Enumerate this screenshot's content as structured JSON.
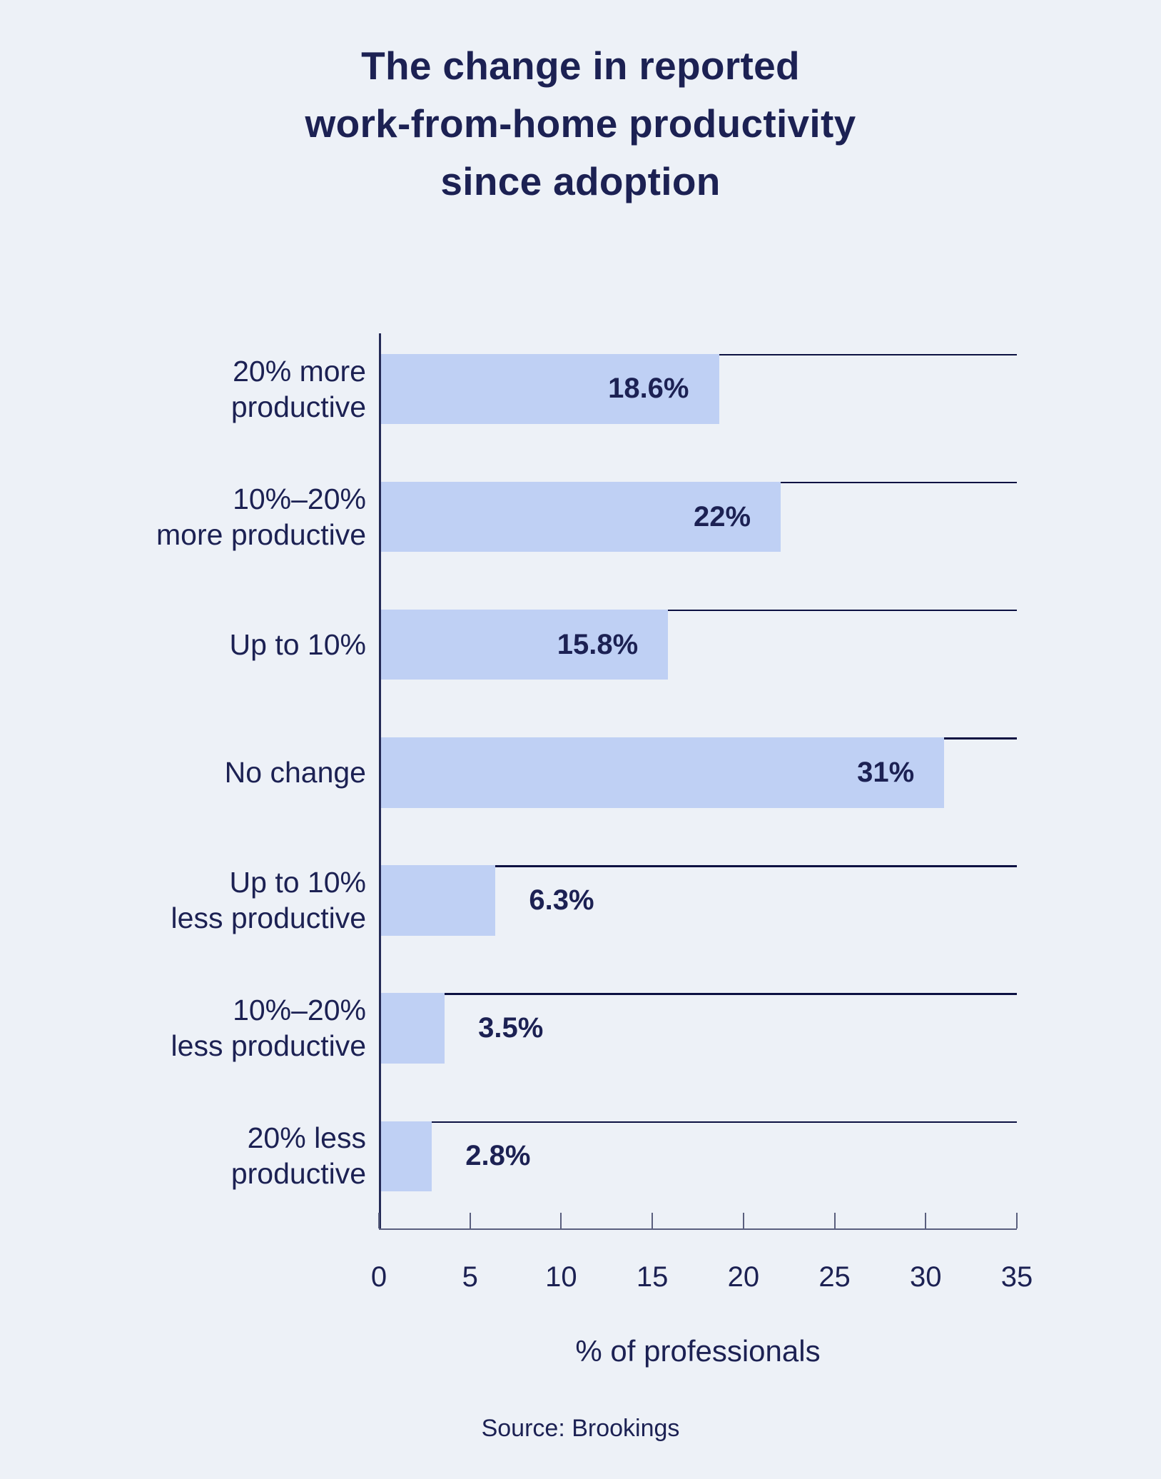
{
  "title": {
    "line1": "The change in reported",
    "line2": "work-from-home productivity",
    "line3": "since adoption"
  },
  "source": {
    "text": "Source: Brookings"
  },
  "chart_data": {
    "type": "bar",
    "orientation": "horizontal",
    "title": "The change in reported work-from-home productivity since adoption",
    "xlabel": "% of professionals",
    "xlim": [
      0,
      35
    ],
    "xticks": [
      0,
      5,
      10,
      15,
      20,
      25,
      30,
      35
    ],
    "grid": "horizontal rule across plot at top edge of each bar",
    "legend": "none",
    "categories": [
      "20% more productive",
      "10%–20% more productive",
      "Up to 10%",
      "No change",
      "Up to 10% less productive",
      "10%–20% less productive",
      "20% less productive"
    ],
    "category_lines": [
      [
        "20% more",
        "productive"
      ],
      [
        "10%–20%",
        "more productive"
      ],
      [
        "Up to 10%"
      ],
      [
        "No change"
      ],
      [
        "Up to 10%",
        "less productive"
      ],
      [
        "10%–20%",
        "less productive"
      ],
      [
        "20% less",
        "productive"
      ]
    ],
    "values": [
      18.6,
      22,
      15.8,
      31,
      6.3,
      3.5,
      2.8
    ],
    "value_labels": [
      "18.6%",
      "22%",
      "15.8%",
      "31%",
      "6.3%",
      "3.5%",
      "2.8%"
    ],
    "value_label_placement": [
      "inside",
      "inside",
      "inside",
      "inside",
      "outside",
      "outside",
      "outside"
    ],
    "colors": {
      "background": "#edf1f7",
      "bar_fill": "#bfd0f4",
      "text_navy": "#1c2153",
      "bar_top_rule": "#0c1142",
      "axis_line": "#5a5f7e"
    }
  }
}
